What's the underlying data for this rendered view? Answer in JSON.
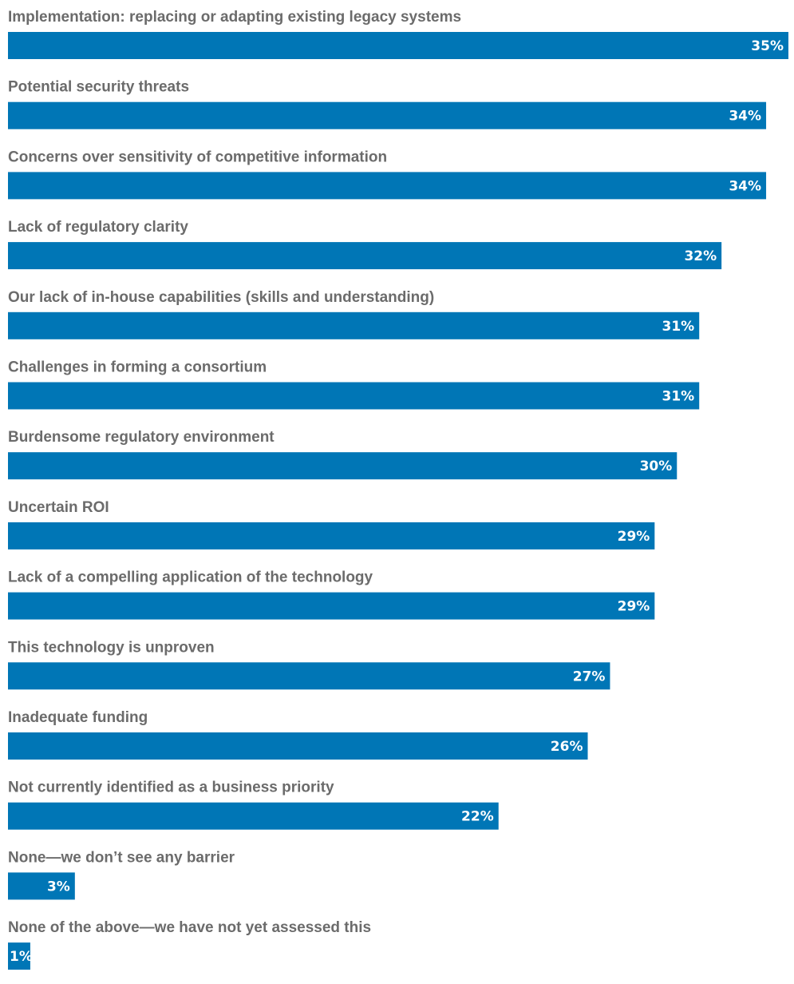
{
  "colors": {
    "bar": "#0076b6",
    "label": "#6b6b6b",
    "value_text": "#ffffff",
    "background": "#ffffff"
  },
  "chart_data": {
    "type": "bar",
    "orientation": "horizontal",
    "title": "",
    "xlabel": "",
    "ylabel": "",
    "grid": false,
    "xlim": [
      0,
      35
    ],
    "categories": [
      "Implementation: replacing or adapting existing legacy systems",
      "Potential security threats",
      "Concerns over sensitivity of competitive information",
      "Lack of regulatory clarity",
      "Our lack of in-house capabilities (skills and understanding)",
      "Challenges in forming a consortium",
      "Burdensome regulatory environment",
      "Uncertain ROI",
      "Lack of a compelling application of the technology",
      "This technology is unproven",
      "Inadequate funding",
      "Not currently identified as a business priority",
      "None—we don’t see any barrier",
      "None of the above—we have not yet assessed this"
    ],
    "values": [
      35,
      34,
      34,
      32,
      31,
      31,
      30,
      29,
      29,
      27,
      26,
      22,
      3,
      1
    ],
    "value_labels": [
      "35%",
      "34%",
      "34%",
      "32%",
      "31%",
      "31%",
      "30%",
      "29%",
      "29%",
      "27%",
      "26%",
      "22%",
      "3%",
      "1%"
    ]
  }
}
